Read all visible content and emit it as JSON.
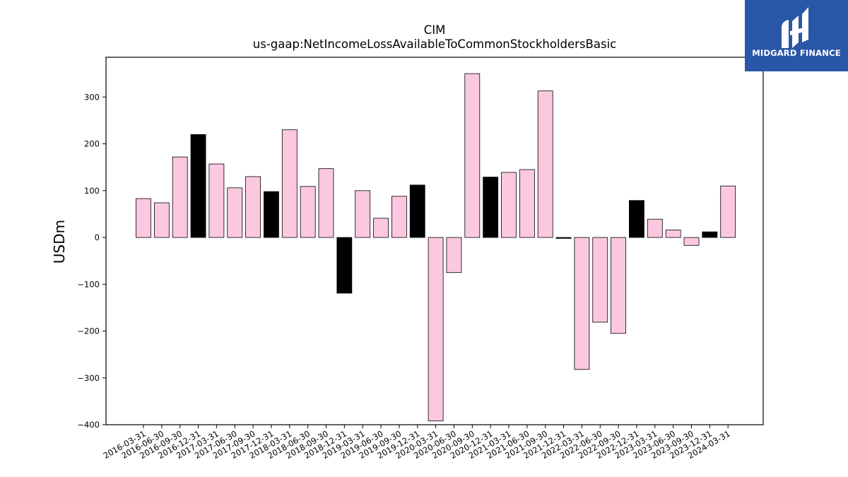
{
  "chart_data": {
    "type": "bar",
    "title": "CIM",
    "subtitle": "us-gaap:NetIncomeLossAvailableToCommonStockholdersBasic",
    "xlabel": "",
    "ylabel": "USDm",
    "ylim": [
      -400,
      385
    ],
    "yticks": [
      -400,
      -300,
      -200,
      -100,
      0,
      100,
      200,
      300
    ],
    "ytick_labels": [
      "−400",
      "−300",
      "−200",
      "−100",
      "0",
      "100",
      "200",
      "300"
    ],
    "grid": false,
    "categories": [
      "2016-03-31",
      "2016-06-30",
      "2016-09-30",
      "2016-12-31",
      "2017-03-31",
      "2017-06-30",
      "2017-09-30",
      "2017-12-31",
      "2018-03-31",
      "2018-06-30",
      "2018-09-30",
      "2018-12-31",
      "2019-03-31",
      "2019-06-30",
      "2019-09-30",
      "2019-12-31",
      "2020-03-31",
      "2020-06-30",
      "2020-09-30",
      "2020-12-31",
      "2021-03-31",
      "2021-06-30",
      "2021-09-30",
      "2021-12-31",
      "2022-03-31",
      "2022-06-30",
      "2022-09-30",
      "2022-12-31",
      "2023-03-31",
      "2023-06-30",
      "2023-09-30",
      "2023-12-31",
      "2024-03-31"
    ],
    "values": [
      83,
      74,
      172,
      220,
      157,
      106,
      130,
      98,
      230,
      109,
      147,
      -119,
      100,
      41,
      88,
      112,
      -392,
      -75,
      350,
      129,
      139,
      145,
      313,
      -2,
      -282,
      -181,
      -205,
      79,
      39,
      16,
      -17,
      12,
      110
    ],
    "colors": {
      "quarter": "#fbc8e0",
      "year_end": "#000000",
      "edge": "#000000"
    }
  },
  "logo": {
    "text": "MIDGARD FINANCE",
    "background": "#2a56a8"
  }
}
